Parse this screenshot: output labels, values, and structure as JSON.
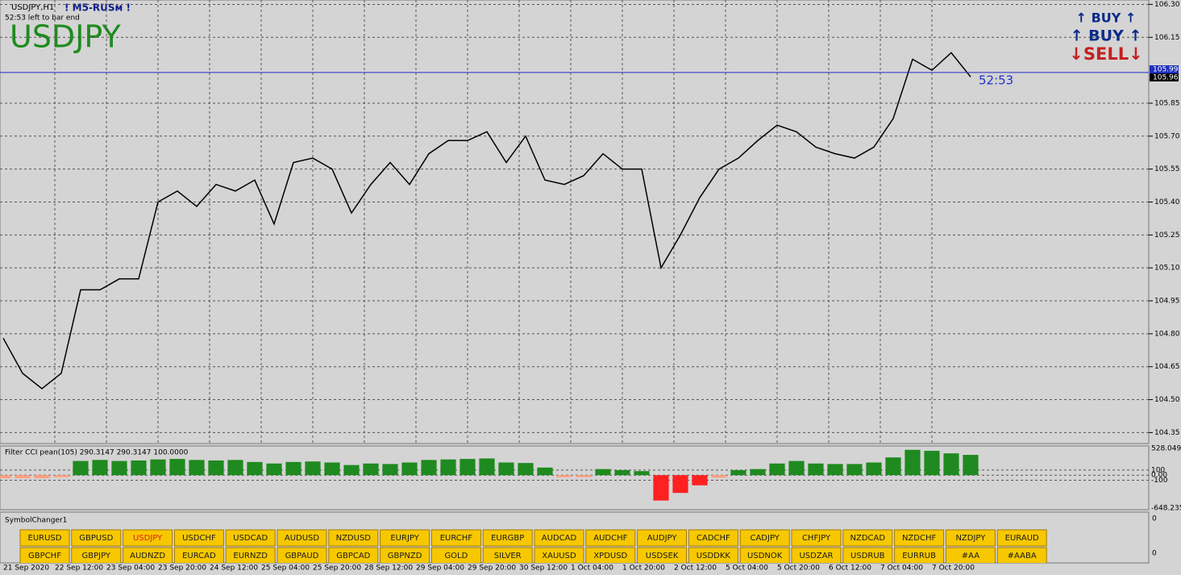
{
  "header": {
    "symbol_timeframe": "USDJPY,H1",
    "indicator_name": "! M5-RUSм !",
    "countdown": "52:53 left to bar end",
    "symbol": "USDJPY"
  },
  "signal_buttons": [
    "↑ BUY ↑",
    "↑ BUY ↑",
    "↓SELL↓"
  ],
  "price_chart": {
    "ylim": [
      104.3,
      106.32
    ],
    "yticks": [
      {
        "value": 106.3,
        "label": "106.30"
      },
      106.15,
      105.85,
      {
        "value": 105.7,
        "label": "105.70"
      },
      105.55,
      {
        "value": 105.4,
        "label": "105.40"
      },
      105.25,
      {
        "value": 105.1,
        "label": "105.10"
      },
      104.95,
      {
        "value": 104.8,
        "label": "104.80"
      },
      104.65,
      {
        "value": 104.5,
        "label": "104.50"
      },
      104.35
    ],
    "time_labels": [
      "21 Sep 2020",
      "22 Sep 12:00",
      "23 Sep 04:00",
      "23 Sep 20:00",
      "24 Sep 12:00",
      "25 Sep 04:00",
      "25 Sep 20:00",
      "28 Sep 12:00",
      "29 Sep 04:00",
      "29 Sep 20:00",
      "30 Sep 12:00",
      "1 Oct 04:00",
      "1 Oct 20:00",
      "2 Oct 12:00",
      "5 Oct 04:00",
      "5 Oct 20:00",
      "6 Oct 12:00",
      "7 Oct 04:00",
      "7 Oct 20:00"
    ],
    "closes": [
      104.78,
      104.62,
      104.55,
      104.62,
      105.0,
      105.0,
      105.05,
      105.05,
      105.4,
      105.45,
      105.38,
      105.48,
      105.45,
      105.5,
      105.3,
      105.58,
      105.6,
      105.55,
      105.35,
      105.48,
      105.58,
      105.48,
      105.62,
      105.68,
      105.68,
      105.72,
      105.58,
      105.7,
      105.5,
      105.48,
      105.52,
      105.62,
      105.55,
      105.55,
      105.1,
      105.25,
      105.42,
      105.55,
      105.6,
      105.68,
      105.75,
      105.72,
      105.65,
      105.62,
      105.6,
      105.65,
      105.78,
      106.05,
      106.0,
      106.08,
      105.97
    ],
    "color": "#000000",
    "price_labels": [
      105.99,
      105.96
    ],
    "timer": "52:53"
  },
  "cci_panel": {
    "label": "Filter CCI pean(105)  290.3147 290.3147 100.0000",
    "ylim": [
      -648.2357,
      528.0494
    ],
    "yticks": [
      528.0494,
      100,
      {
        "value": 0,
        "label": "0.00"
      },
      -100,
      -648.2357
    ],
    "values": [
      -60,
      -60,
      -60,
      -40,
      280,
      300,
      280,
      290,
      310,
      320,
      300,
      290,
      300,
      260,
      230,
      260,
      270,
      250,
      200,
      230,
      220,
      250,
      300,
      310,
      320,
      330,
      250,
      240,
      150,
      -40,
      -40,
      120,
      100,
      80,
      -500,
      -350,
      -200,
      -50,
      100,
      120,
      230,
      280,
      230,
      220,
      220,
      250,
      350,
      500,
      480,
      430,
      400
    ],
    "up_color": "#1f8a1f",
    "down_color": "#ff2020",
    "weak_color": "#ffa080"
  },
  "symbol_changer": {
    "title": "SymbolChanger1",
    "active_index": 2,
    "rows": [
      [
        "EURUSD",
        "GBPUSD",
        "USDJPY",
        "USDCHF",
        "USDCAD",
        "AUDUSD",
        "NZDUSD",
        "EURJPY",
        "EURCHF",
        "EURGBP",
        "AUDCAD",
        "AUDCHF",
        "AUDJPY",
        "CADCHF",
        "CADJPY",
        "CHFJPY",
        "NZDCAD",
        "NZDCHF",
        "NZDJPY",
        "EURAUD"
      ],
      [
        "GBPCHF",
        "GBPJPY",
        "AUDNZD",
        "EURCAD",
        "EURNZD",
        "GBPAUD",
        "GBPCAD",
        "GBPNZD",
        "GOLD",
        "SILVER",
        "XAUUSD",
        "XPDUSD",
        "USDSEK",
        "USDDKK",
        "USDNOK",
        "USDZAR",
        "USDRUB",
        "EURRUB",
        "#AA",
        "#AABA"
      ]
    ],
    "axis_labels": [
      0,
      0
    ]
  }
}
